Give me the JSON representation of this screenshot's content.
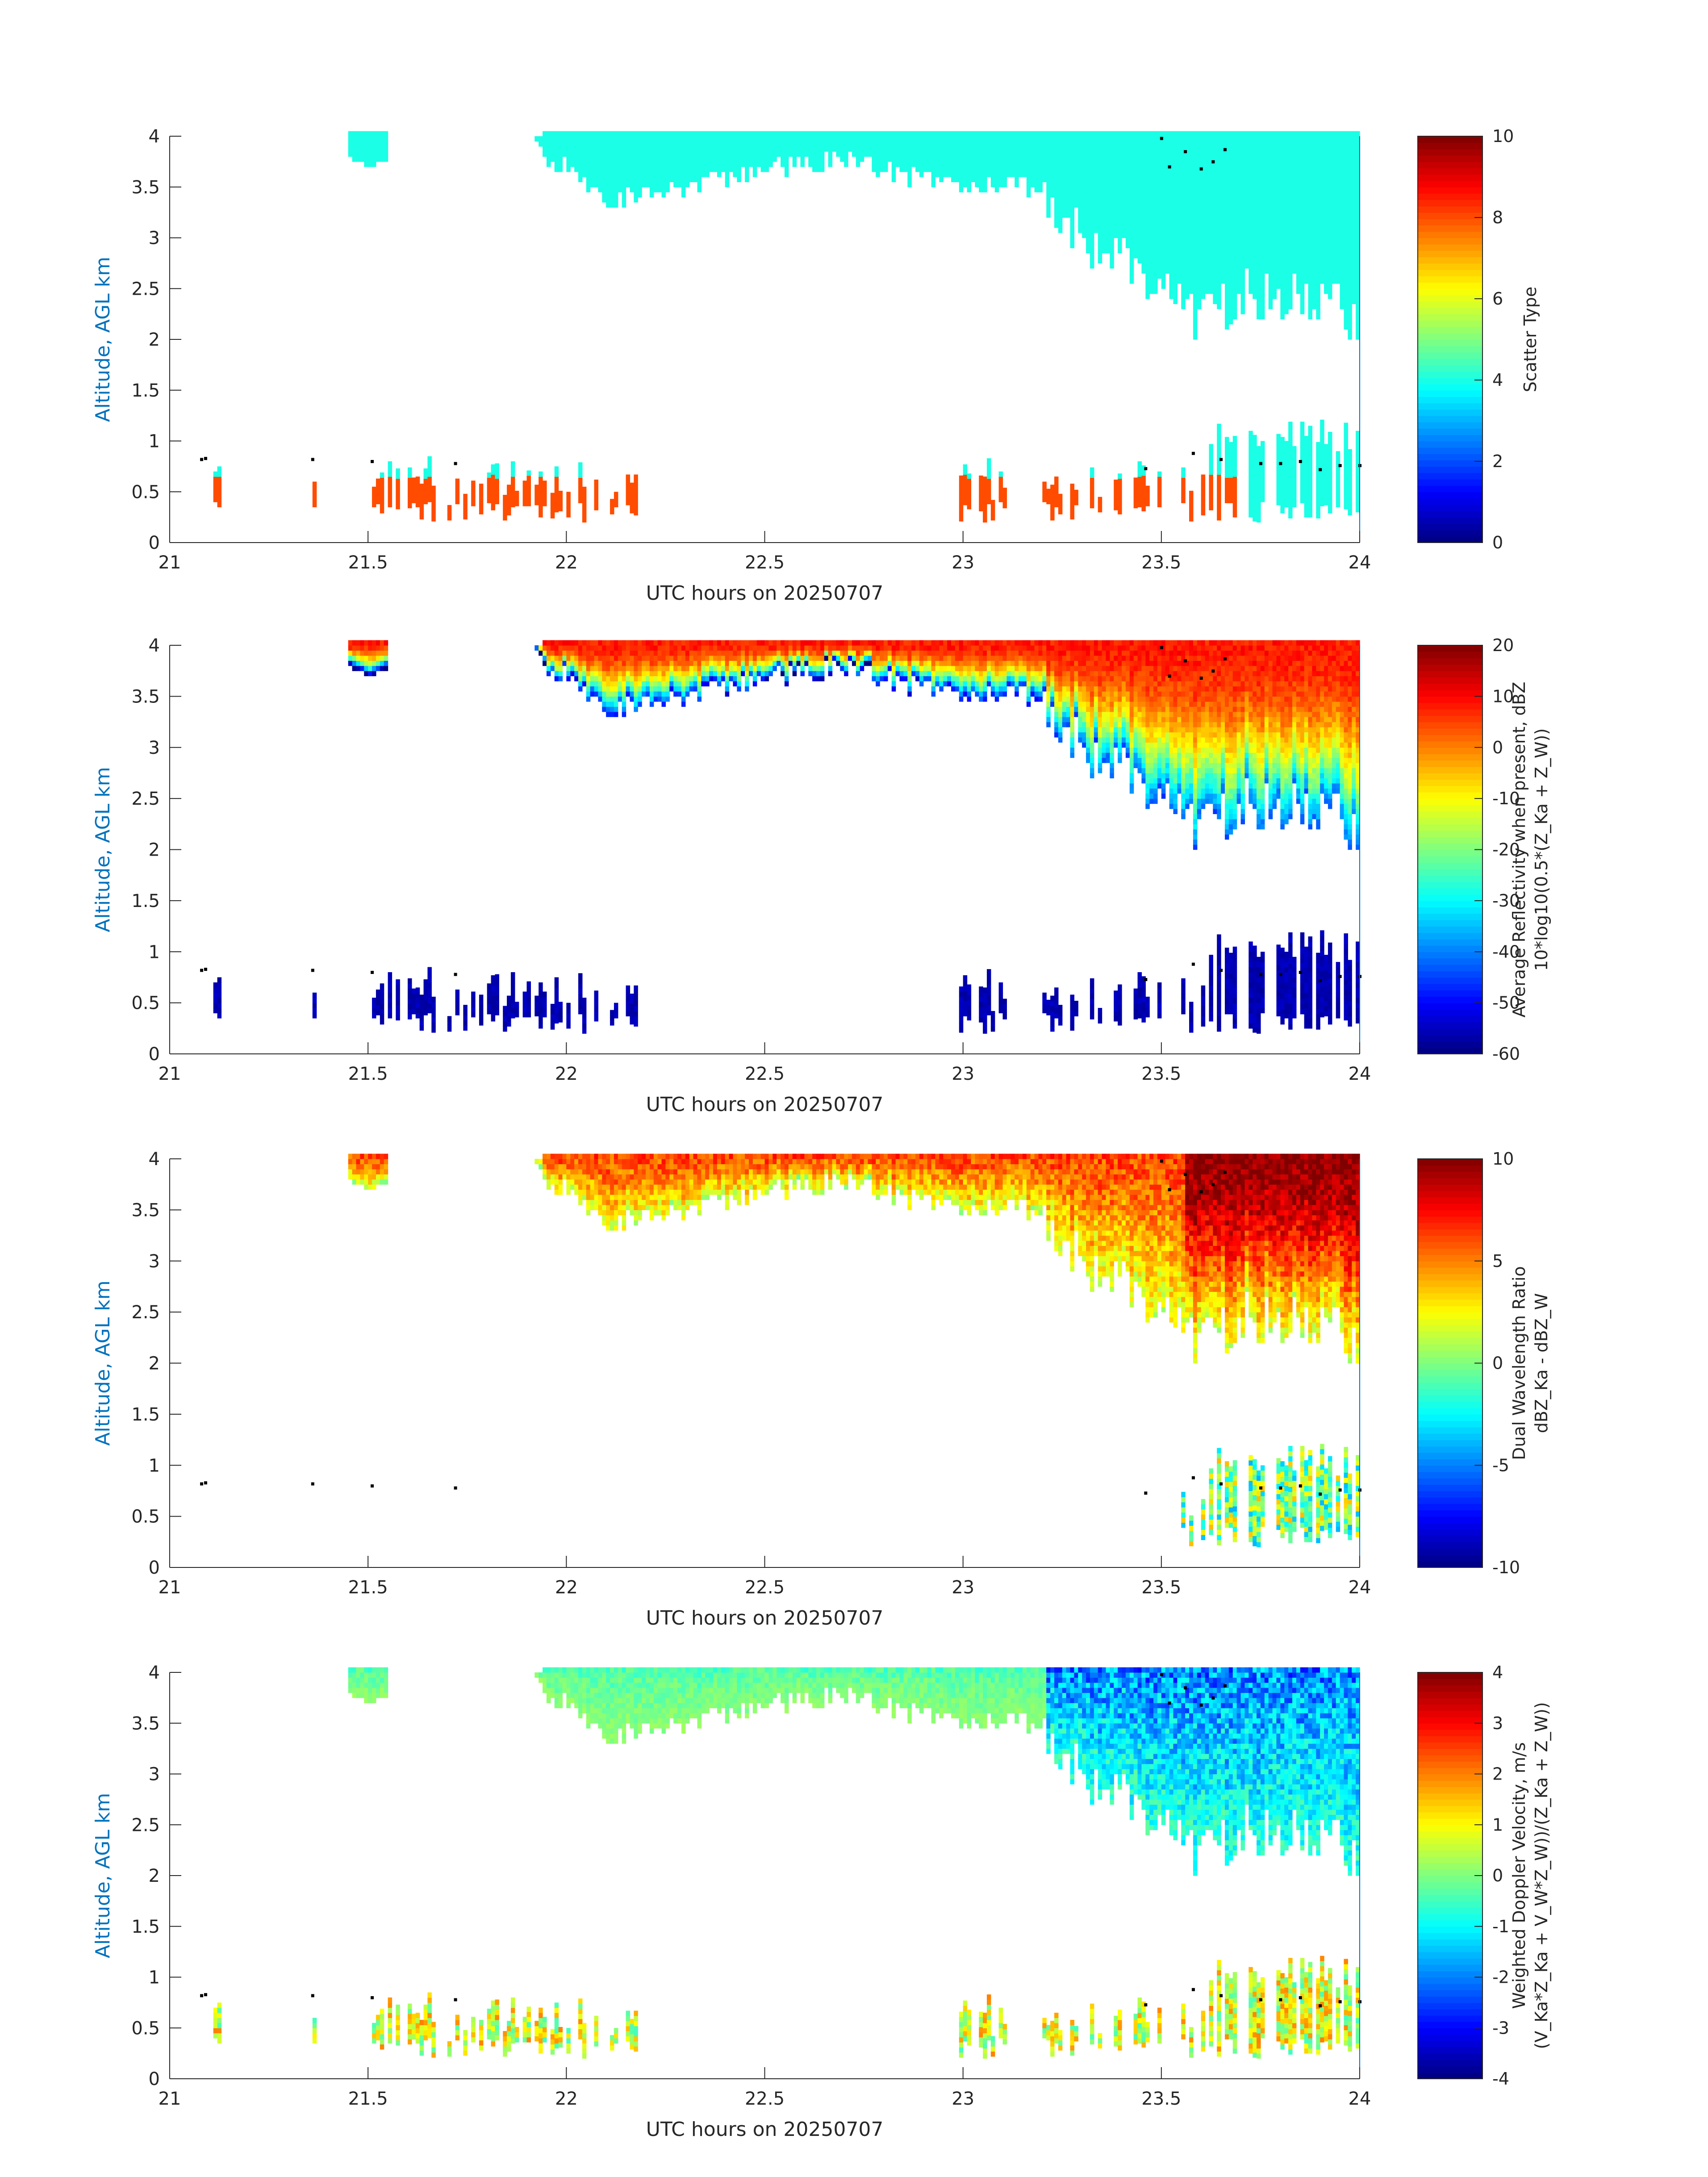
{
  "chart_data": [
    {
      "type": "heatmap",
      "id": "scatter",
      "xlabel": "UTC hours on 20250707",
      "ylabel": "Altitude, AGL km",
      "xlim": [
        21,
        24
      ],
      "ylim": [
        0,
        4
      ],
      "xticks": [
        "21",
        "21.5",
        "22",
        "22.5",
        "23",
        "23.5",
        "24"
      ],
      "yticks": [
        "0",
        "0.5",
        "1",
        "1.5",
        "2",
        "2.5",
        "3",
        "3.5",
        "4"
      ],
      "colorbar": {
        "label_lines": [
          "Scatter Type"
        ],
        "range": [
          0,
          10
        ],
        "ticks": [
          "0",
          "2",
          "4",
          "6",
          "8",
          "10"
        ]
      },
      "upper_cloud_base_km": [
        [
          21.45,
          3.75
        ],
        [
          21.55,
          3.75
        ],
        [
          21.92,
          3.9
        ],
        [
          22.1,
          3.4
        ],
        [
          22.3,
          3.55
        ],
        [
          22.5,
          3.7
        ],
        [
          22.7,
          3.8
        ],
        [
          22.9,
          3.6
        ],
        [
          23.0,
          3.55
        ],
        [
          23.2,
          3.5
        ],
        [
          23.3,
          3.0
        ],
        [
          23.4,
          2.8
        ],
        [
          23.5,
          2.5
        ],
        [
          23.6,
          2.25
        ],
        [
          23.7,
          2.5
        ],
        [
          23.8,
          2.35
        ],
        [
          23.9,
          2.5
        ],
        [
          24.0,
          2.1
        ]
      ],
      "low_echo_extent_hours": [
        [
          21.07,
          21.12
        ],
        [
          21.36,
          21.37
        ],
        [
          21.5,
          21.52
        ],
        [
          21.72,
          21.74
        ],
        [
          21.5,
          22.2
        ],
        [
          22.99,
          23.1
        ],
        [
          23.2,
          23.5
        ],
        [
          23.55,
          24.0
        ]
      ],
      "echo_class_values": [
        4,
        8
      ]
    },
    {
      "type": "heatmap",
      "id": "reflectivity",
      "xlabel": "UTC hours on 20250707",
      "ylabel": "Altitude, AGL km",
      "xlim": [
        21,
        24
      ],
      "ylim": [
        0,
        4
      ],
      "xticks": [
        "21",
        "21.5",
        "22",
        "22.5",
        "23",
        "23.5",
        "24"
      ],
      "yticks": [
        "0",
        "0.5",
        "1",
        "1.5",
        "2",
        "2.5",
        "3",
        "3.5",
        "4"
      ],
      "colorbar": {
        "label_lines": [
          "Average Reflectivity when present, dBZ",
          "10*log10(0.5*(Z_Ka + Z_W))"
        ],
        "range": [
          -60,
          20
        ],
        "ticks": [
          "-60",
          "-50",
          "-40",
          "-30",
          "-20",
          "-10",
          "0",
          "10",
          "20"
        ]
      },
      "upper_cloud_top_dbz": 8,
      "upper_cloud_base_dbz": -40,
      "low_cloud_dbz": -58
    },
    {
      "type": "heatmap",
      "id": "dwr",
      "xlabel": "UTC hours on 20250707",
      "ylabel": "Altitude, AGL km",
      "xlim": [
        21,
        24
      ],
      "ylim": [
        0,
        4
      ],
      "xticks": [
        "21",
        "21.5",
        "22",
        "22.5",
        "23",
        "23.5",
        "24"
      ],
      "yticks": [
        "0",
        "0.5",
        "1",
        "1.5",
        "2",
        "2.5",
        "3",
        "3.5",
        "4"
      ],
      "colorbar": {
        "label_lines": [
          "Dual Wavelength Ratio",
          "dBZ_Ka - dBZ_W"
        ],
        "range": [
          -10,
          10
        ],
        "ticks": [
          "-10",
          "-5",
          "0",
          "5",
          "10"
        ]
      },
      "upper_cloud_dwr_range": [
        2,
        10
      ],
      "low_cloud_dwr_range": [
        -4,
        4
      ]
    },
    {
      "type": "heatmap",
      "id": "doppler",
      "xlabel": "UTC hours on 20250707",
      "ylabel": "Altitude, AGL km",
      "xlim": [
        21,
        24
      ],
      "ylim": [
        0,
        4
      ],
      "xticks": [
        "21",
        "21.5",
        "22",
        "22.5",
        "23",
        "23.5",
        "24"
      ],
      "yticks": [
        "0",
        "0.5",
        "1",
        "1.5",
        "2",
        "2.5",
        "3",
        "3.5",
        "4"
      ],
      "colorbar": {
        "label_lines": [
          "Weighted Doppler Velocity, m/s",
          "(V_Ka*Z_Ka + V_W*Z_W))/(Z_Ka + Z_W))"
        ],
        "range": [
          -4,
          4
        ],
        "ticks": [
          "-4",
          "-3",
          "-2",
          "-1",
          "0",
          "1",
          "2",
          "3",
          "4"
        ]
      },
      "upper_cloud_velocity_range": [
        -3,
        0.5
      ],
      "low_cloud_velocity_range": [
        -0.5,
        2
      ]
    }
  ],
  "cloud_base_markers": [
    [
      21.08,
      0.82
    ],
    [
      21.09,
      0.83
    ],
    [
      21.36,
      0.82
    ],
    [
      21.51,
      0.8
    ],
    [
      21.72,
      0.78
    ],
    [
      23.46,
      0.73
    ],
    [
      23.58,
      0.88
    ],
    [
      23.65,
      0.82
    ],
    [
      23.75,
      0.78
    ],
    [
      23.8,
      0.78
    ],
    [
      23.85,
      0.8
    ],
    [
      23.9,
      0.72
    ],
    [
      23.95,
      0.76
    ],
    [
      24.0,
      0.76
    ],
    [
      23.5,
      3.98
    ],
    [
      23.52,
      3.7
    ],
    [
      23.56,
      3.85
    ],
    [
      23.6,
      3.68
    ],
    [
      23.63,
      3.75
    ],
    [
      23.66,
      3.87
    ]
  ]
}
